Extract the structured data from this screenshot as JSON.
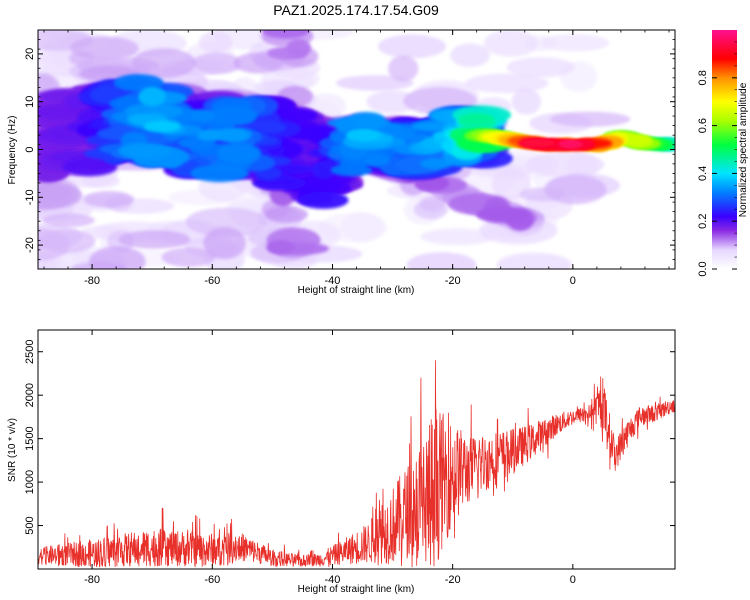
{
  "title": "PAZ1.2025.174.17.54.G09",
  "colors": {
    "snr_line": "#e8302b",
    "axis": "#000000"
  },
  "chart_data": [
    {
      "type": "heatmap",
      "name": "spectrogram",
      "xlabel": "Height of straight line (km)",
      "ylabel": "Frequency (Hz)",
      "xlim": [
        -89,
        17
      ],
      "ylim": [
        -25,
        25
      ],
      "xticks": [
        -80,
        -60,
        -40,
        -20,
        0
      ],
      "yticks": [
        -20,
        -10,
        0,
        10,
        20
      ],
      "colormap": "rainbow (white-purple-blue-cyan-green-yellow-red-magenta)",
      "colorbar": {
        "label": "Normalized spectral amplitude",
        "range": [
          0,
          1
        ],
        "ticks": [
          "0.0",
          "0.2",
          "0.4",
          "0.6",
          "0.8"
        ]
      },
      "ridge": {
        "description": "dominant frequency track vs height",
        "x": [
          -88,
          -80,
          -74,
          -70,
          -65,
          -60,
          -55,
          -50,
          -45,
          -40,
          -35,
          -30,
          -25,
          -20,
          -15,
          -10,
          -5,
          0,
          5,
          8,
          10,
          13,
          17
        ],
        "freq": [
          3,
          4,
          7,
          5,
          4,
          3,
          3,
          1,
          -1,
          -4,
          3,
          1,
          0,
          3,
          3,
          2,
          1,
          1,
          1,
          3,
          2,
          1,
          1
        ],
        "amplitude": [
          0.1,
          0.15,
          0.3,
          0.35,
          0.3,
          0.3,
          0.3,
          0.2,
          0.15,
          0.2,
          0.35,
          0.3,
          0.3,
          0.35,
          0.55,
          0.7,
          0.85,
          0.85,
          0.75,
          0.55,
          0.6,
          0.5,
          0.4
        ]
      }
    },
    {
      "type": "line",
      "name": "snr",
      "xlabel": "Height of straight line (km)",
      "ylabel": "SNR (10 * v/v)",
      "xlim": [
        -89,
        17
      ],
      "ylim": [
        0,
        2750
      ],
      "xticks": [
        -80,
        -60,
        -40,
        -20,
        0
      ],
      "yticks": [
        500,
        1000,
        1500,
        2000,
        2500
      ],
      "envelope": {
        "description": "approximate mean SNR level and spread vs height",
        "x": [
          -89,
          -80,
          -70,
          -60,
          -55,
          -50,
          -45,
          -42,
          -38,
          -34,
          -30,
          -27,
          -24,
          -22,
          -20,
          -17,
          -14,
          -10,
          -6,
          -3,
          0,
          3,
          5,
          7,
          9,
          11,
          14,
          17
        ],
        "mean": [
          150,
          180,
          250,
          220,
          250,
          130,
          90,
          110,
          200,
          300,
          500,
          700,
          800,
          1000,
          1100,
          1150,
          1250,
          1350,
          1500,
          1650,
          1750,
          1800,
          1900,
          1300,
          1550,
          1750,
          1800,
          1900
        ],
        "spread": [
          130,
          220,
          300,
          260,
          220,
          130,
          90,
          110,
          200,
          320,
          600,
          750,
          1300,
          1100,
          800,
          500,
          450,
          350,
          250,
          180,
          120,
          130,
          400,
          250,
          220,
          160,
          130,
          120
        ]
      }
    }
  ]
}
